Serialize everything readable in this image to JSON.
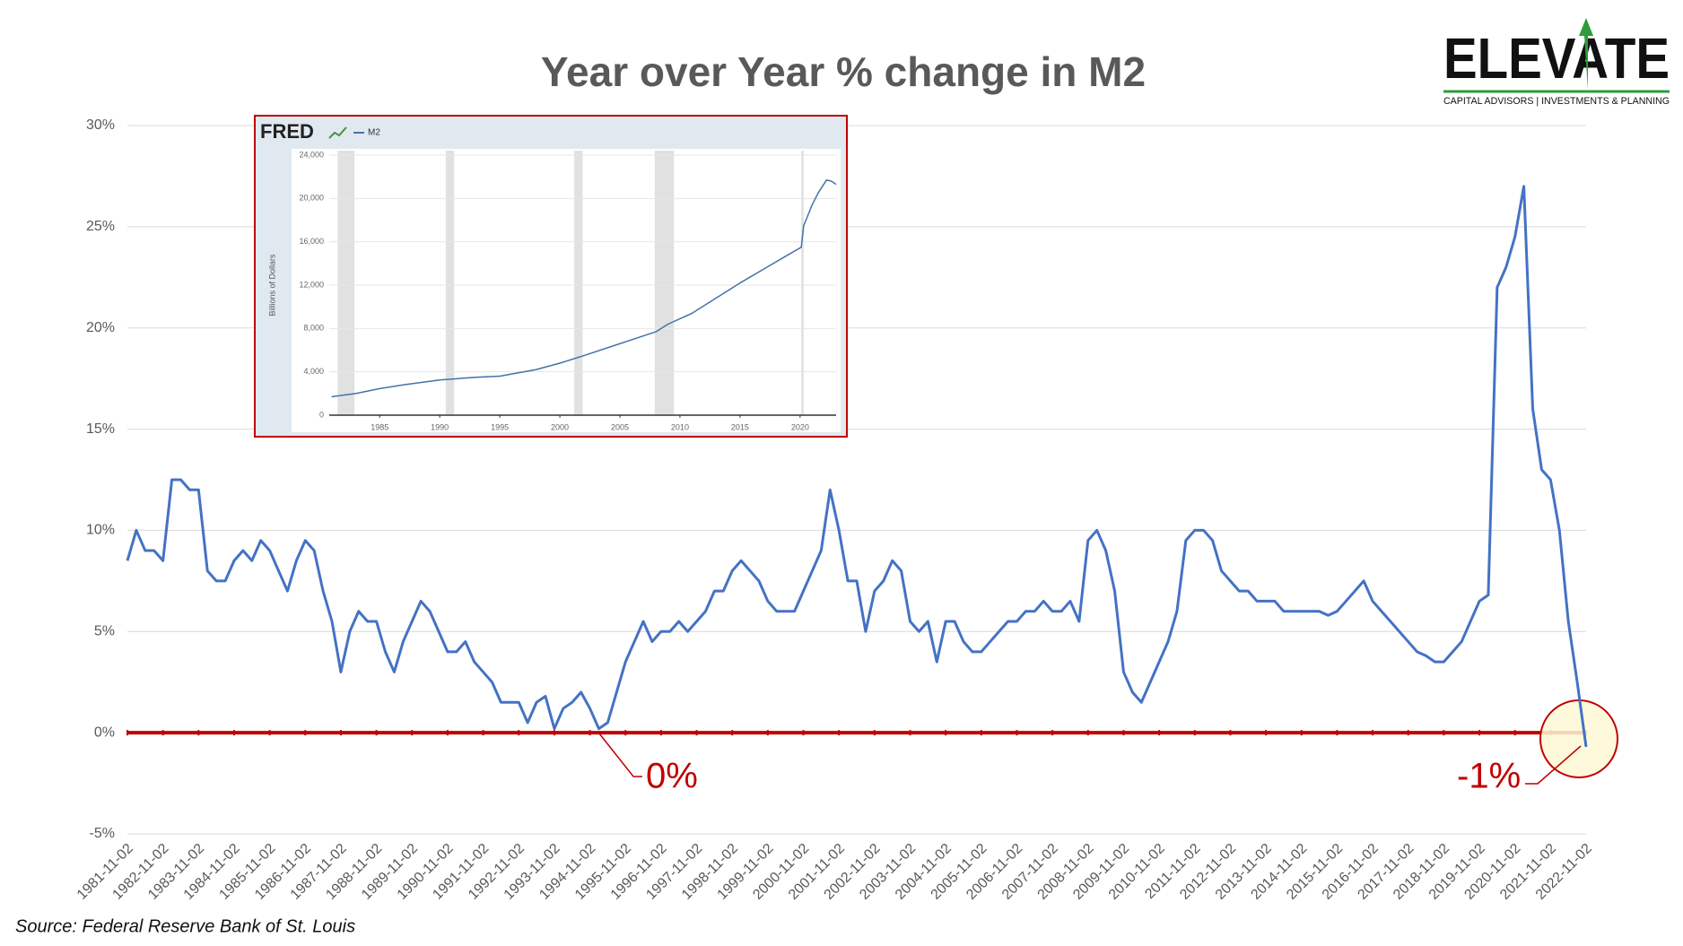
{
  "logo": {
    "name": "ELEVATE",
    "tagline": "CAPITAL ADVISORS | INVESTMENTS & PLANNING"
  },
  "source": "Source: Federal Reserve Bank of St. Louis",
  "chart_data": [
    {
      "type": "line",
      "title": "Year over Year % change in M2",
      "x": [
        "1981-11-02",
        "1982-02-02",
        "1982-05-02",
        "1982-08-02",
        "1982-11-02",
        "1983-02-02",
        "1983-05-02",
        "1983-08-02",
        "1983-11-02",
        "1984-02-02",
        "1984-05-02",
        "1984-08-02",
        "1984-11-02",
        "1985-02-02",
        "1985-05-02",
        "1985-08-02",
        "1985-11-02",
        "1986-02-02",
        "1986-05-02",
        "1986-08-02",
        "1986-11-02",
        "1987-02-02",
        "1987-05-02",
        "1987-08-02",
        "1987-11-02",
        "1988-02-02",
        "1988-05-02",
        "1988-08-02",
        "1988-11-02",
        "1989-02-02",
        "1989-05-02",
        "1989-08-02",
        "1989-11-02",
        "1990-02-02",
        "1990-05-02",
        "1990-08-02",
        "1990-11-02",
        "1991-02-02",
        "1991-05-02",
        "1991-08-02",
        "1991-11-02",
        "1992-02-02",
        "1992-05-02",
        "1992-08-02",
        "1992-11-02",
        "1993-02-02",
        "1993-05-02",
        "1993-08-02",
        "1993-11-02",
        "1994-02-02",
        "1994-05-02",
        "1994-08-02",
        "1994-11-02",
        "1995-02-02",
        "1995-05-02",
        "1995-08-02",
        "1995-11-02",
        "1996-02-02",
        "1996-05-02",
        "1996-08-02",
        "1996-11-02",
        "1997-02-02",
        "1997-05-02",
        "1997-08-02",
        "1997-11-02",
        "1998-02-02",
        "1998-05-02",
        "1998-08-02",
        "1998-11-02",
        "1999-02-02",
        "1999-05-02",
        "1999-08-02",
        "1999-11-02",
        "2000-02-02",
        "2000-05-02",
        "2000-08-02",
        "2000-11-02",
        "2001-02-02",
        "2001-05-02",
        "2001-08-02",
        "2001-11-02",
        "2002-02-02",
        "2002-05-02",
        "2002-08-02",
        "2002-11-02",
        "2003-02-02",
        "2003-05-02",
        "2003-08-02",
        "2003-11-02",
        "2004-02-02",
        "2004-05-02",
        "2004-08-02",
        "2004-11-02",
        "2005-02-02",
        "2005-05-02",
        "2005-08-02",
        "2005-11-02",
        "2006-02-02",
        "2006-05-02",
        "2006-08-02",
        "2006-11-02",
        "2007-02-02",
        "2007-05-02",
        "2007-08-02",
        "2007-11-02",
        "2008-02-02",
        "2008-05-02",
        "2008-08-02",
        "2008-11-02",
        "2009-02-02",
        "2009-05-02",
        "2009-08-02",
        "2009-11-02",
        "2010-02-02",
        "2010-05-02",
        "2010-08-02",
        "2010-11-02",
        "2011-02-02",
        "2011-05-02",
        "2011-08-02",
        "2011-11-02",
        "2012-02-02",
        "2012-05-02",
        "2012-08-02",
        "2012-11-02",
        "2013-02-02",
        "2013-05-02",
        "2013-08-02",
        "2013-11-02",
        "2014-02-02",
        "2014-05-02",
        "2014-08-02",
        "2014-11-02",
        "2015-02-02",
        "2015-05-02",
        "2015-08-02",
        "2015-11-02",
        "2016-02-02",
        "2016-05-02",
        "2016-08-02",
        "2016-11-02",
        "2017-02-02",
        "2017-05-02",
        "2017-08-02",
        "2017-11-02",
        "2018-02-02",
        "2018-05-02",
        "2018-08-02",
        "2018-11-02",
        "2019-02-02",
        "2019-05-02",
        "2019-08-02",
        "2019-11-02",
        "2020-02-02",
        "2020-05-02",
        "2020-08-02",
        "2020-11-02",
        "2021-02-02",
        "2021-05-02",
        "2021-08-02",
        "2021-11-02",
        "2022-02-02",
        "2022-05-02",
        "2022-08-02",
        "2022-11-02"
      ],
      "series": [
        {
          "name": "M2",
          "color": "#4472c4",
          "values": [
            8.5,
            10,
            9,
            9,
            8.5,
            12.5,
            12.5,
            12,
            12,
            8,
            7.5,
            7.5,
            8.5,
            9,
            8.5,
            9.5,
            9,
            8,
            7,
            8.5,
            9.5,
            9,
            7,
            5.5,
            3,
            5,
            6,
            5.5,
            5.5,
            4,
            3,
            4.5,
            5.5,
            6.5,
            6,
            5,
            4,
            4,
            4.5,
            3.5,
            3,
            2.5,
            1.5,
            1.5,
            1.5,
            0.5,
            1.5,
            1.8,
            0.2,
            1.2,
            1.5,
            2,
            1.2,
            0.2,
            0.5,
            2,
            3.5,
            4.5,
            5.5,
            4.5,
            5,
            5,
            5.5,
            5,
            5.5,
            6,
            7,
            7,
            8,
            8.5,
            8,
            7.5,
            6.5,
            6,
            6,
            6,
            7,
            8,
            9,
            12,
            10,
            7.5,
            7.5,
            5,
            7,
            7.5,
            8.5,
            8,
            5.5,
            5,
            5.5,
            3.5,
            5.5,
            5.5,
            4.5,
            4,
            4,
            4.5,
            5,
            5.5,
            5.5,
            6,
            6,
            6.5,
            6,
            6,
            6.5,
            5.5,
            9.5,
            10,
            9,
            7,
            3,
            2,
            1.5,
            2.5,
            3.5,
            4.5,
            6,
            9.5,
            10,
            10,
            9.5,
            8,
            7.5,
            7,
            7,
            6.5,
            6.5,
            6.5,
            6,
            6,
            6,
            6,
            6,
            5.8,
            6,
            6.5,
            7,
            7.5,
            6.5,
            6,
            5.5,
            5,
            4.5,
            4,
            3.8,
            3.5,
            3.5,
            4,
            4.5,
            5.5,
            6.5,
            6.8,
            22,
            23,
            24.5,
            27,
            16,
            13,
            12.5,
            10,
            5.5,
            2.5,
            -0.7
          ]
        }
      ],
      "ylim": [
        -5,
        30
      ],
      "yticks": [
        {
          "value": -5,
          "label": "-5%"
        },
        {
          "value": 0,
          "label": "0%"
        },
        {
          "value": 5,
          "label": "5%"
        },
        {
          "value": 10,
          "label": "10%"
        },
        {
          "value": 15,
          "label": "15%"
        },
        {
          "value": 20,
          "label": "20%"
        },
        {
          "value": 25,
          "label": "25%"
        },
        {
          "value": 30,
          "label": "30%"
        }
      ],
      "xlim": [
        "1981-11-02",
        "2022-11-02"
      ],
      "xticks": [
        "1981-11-02",
        "1982-11-02",
        "1983-11-02",
        "1984-11-02",
        "1985-11-02",
        "1986-11-02",
        "1987-11-02",
        "1988-11-02",
        "1989-11-02",
        "1990-11-02",
        "1991-11-02",
        "1992-11-02",
        "1993-11-02",
        "1994-11-02",
        "1995-11-02",
        "1996-11-02",
        "1997-11-02",
        "1998-11-02",
        "1999-11-02",
        "2000-11-02",
        "2001-11-02",
        "2002-11-02",
        "2003-11-02",
        "2004-11-02",
        "2005-11-02",
        "2006-11-02",
        "2007-11-02",
        "2008-11-02",
        "2009-11-02",
        "2010-11-02",
        "2011-11-02",
        "2012-11-02",
        "2013-11-02",
        "2014-11-02",
        "2015-11-02",
        "2016-11-02",
        "2017-11-02",
        "2018-11-02",
        "2019-11-02",
        "2020-11-02",
        "2021-11-02",
        "2022-11-02"
      ],
      "grid": true,
      "annotations": [
        "0%",
        "-1%"
      ]
    },
    {
      "type": "line",
      "brand": "FRED",
      "y_label": "Billions of Dollars",
      "x": [
        1981,
        1983,
        1985,
        1987,
        1990,
        1993,
        1995,
        1998,
        2000,
        2002,
        2005,
        2008,
        2009,
        2011,
        2013,
        2015,
        2017,
        2019,
        2020.1,
        2020.3,
        2020.6,
        2021,
        2021.5,
        2022.2,
        2022.6,
        2023
      ],
      "series": [
        {
          "name": "M2",
          "color": "#4572a7",
          "values": [
            1700,
            2000,
            2450,
            2800,
            3250,
            3500,
            3600,
            4200,
            4800,
            5500,
            6600,
            7700,
            8400,
            9400,
            10800,
            12200,
            13500,
            14800,
            15500,
            17500,
            18300,
            19400,
            20500,
            21700,
            21600,
            21300
          ]
        }
      ],
      "shaded_periods": [
        [
          1981.5,
          1982.9
        ],
        [
          1990.5,
          1991.2
        ],
        [
          2001.2,
          2001.9
        ],
        [
          2007.9,
          2009.5
        ],
        [
          2020.1,
          2020.3
        ]
      ],
      "xlim": [
        1980.8,
        2023
      ],
      "xticks": [
        1985,
        1990,
        1995,
        2000,
        2005,
        2010,
        2015,
        2020
      ],
      "ylim": [
        0,
        24000
      ],
      "yticks": [
        0,
        {
          "value": 4000,
          "label": "4,000"
        },
        {
          "value": 8000,
          "label": "8,000"
        },
        {
          "value": 12000,
          "label": "12,000"
        },
        {
          "value": 16000,
          "label": "16,000"
        },
        {
          "value": 20000,
          "label": "20,000"
        },
        {
          "value": 24000,
          "label": "24,000"
        }
      ],
      "grid": true
    }
  ]
}
